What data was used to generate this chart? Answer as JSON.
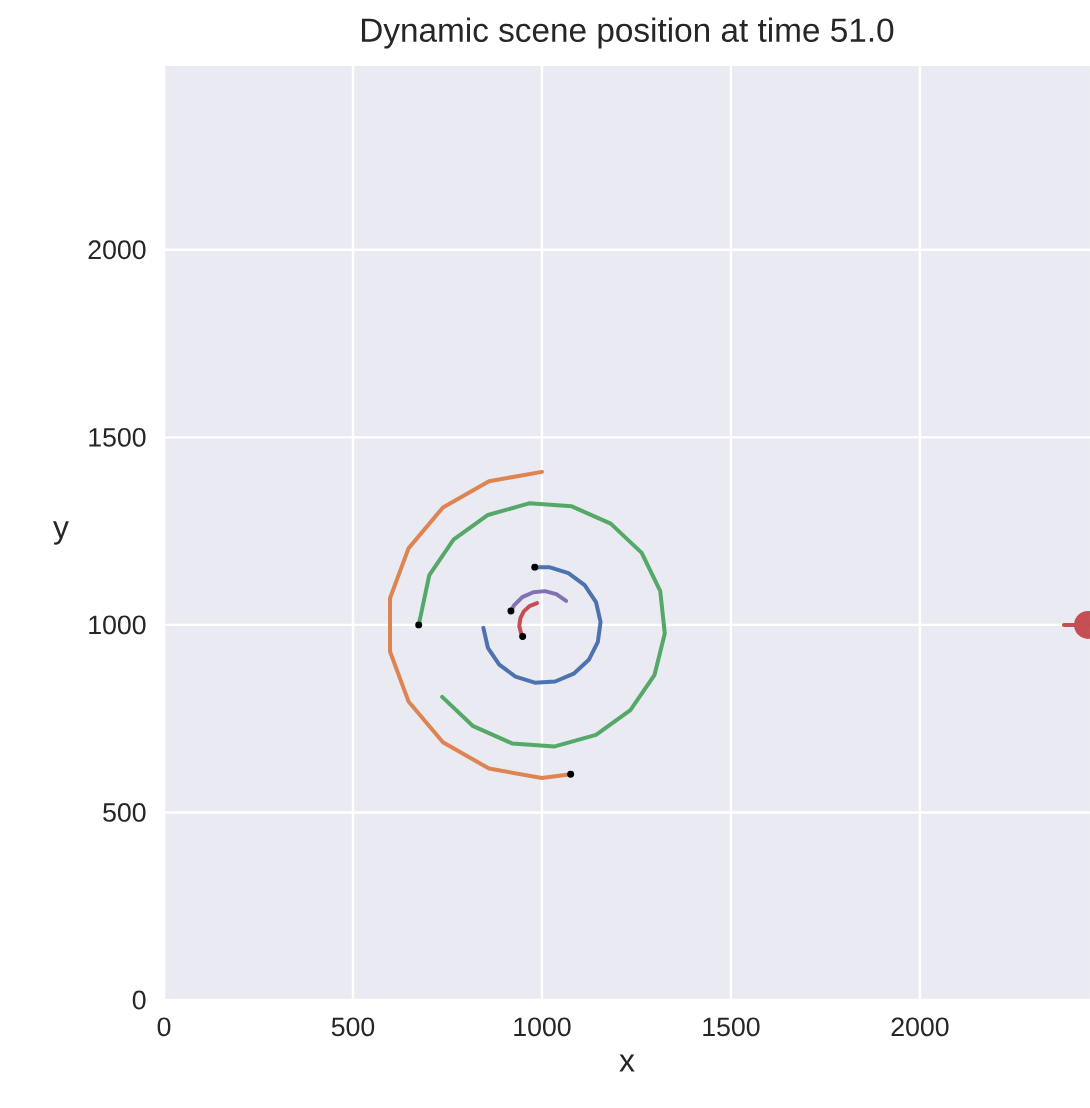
{
  "chart_data": {
    "type": "line",
    "title": "Dynamic scene position at time 51.0",
    "xlabel": "x",
    "ylabel": "y",
    "xlim": [
      0,
      2450
    ],
    "ylim": [
      0,
      2490
    ],
    "xticks": [
      0,
      500,
      1000,
      1500,
      2000
    ],
    "yticks": [
      0,
      500,
      1000,
      1500,
      2000
    ],
    "grid": true,
    "line_style": "solid",
    "series": [
      {
        "color": "#4c72b0",
        "x": [
          845,
          857,
          887,
          930,
          981,
          1035,
          1084,
          1124,
          1148,
          1155,
          1143,
          1113,
          1070,
          1019,
          981
        ],
        "values": [
          992,
          939,
          894,
          862,
          846,
          849,
          870,
          907,
          955,
          1008,
          1061,
          1106,
          1138,
          1154,
          1154
        ]
      },
      {
        "color": "#dd8452",
        "x": [
          1000,
          860,
          738,
          647,
          598,
          598,
          647,
          738,
          860,
          1000,
          1076
        ],
        "values": [
          1408,
          1383,
          1313,
          1204,
          1071,
          929,
          796,
          687,
          617,
          592,
          602
        ]
      },
      {
        "color": "#55a868",
        "x": [
          736,
          818,
          921,
          1034,
          1143,
          1234,
          1298,
          1325,
          1313,
          1264,
          1182,
          1079,
          966,
          857,
          766,
          702,
          674
        ],
        "values": [
          808,
          730,
          684,
          676,
          707,
          773,
          867,
          977,
          1090,
          1192,
          1270,
          1316,
          1324,
          1293,
          1227,
          1133,
          1000
        ]
      },
      {
        "color": "#c44e52",
        "x": [
          987,
          967,
          952,
          943,
          940,
          945,
          949
        ],
        "values": [
          1058,
          1050,
          1036,
          1018,
          997,
          977,
          969
        ]
      },
      {
        "color": "#8172b3",
        "x": [
          1064,
          1038,
          1008,
          977,
          948,
          926,
          918
        ],
        "values": [
          1064,
          1082,
          1090,
          1087,
          1074,
          1052,
          1037
        ]
      },
      {
        "color": "#c44e52",
        "marker": "circle",
        "x": [
          2381,
          2445
        ],
        "values": [
          1000,
          1000
        ]
      },
      {
        "type": "scatter",
        "marker": "circle",
        "color": "#000000",
        "x": [
          981,
          1076,
          674,
          949,
          918
        ],
        "values": [
          1154,
          602,
          1000,
          969,
          1037
        ]
      }
    ]
  }
}
